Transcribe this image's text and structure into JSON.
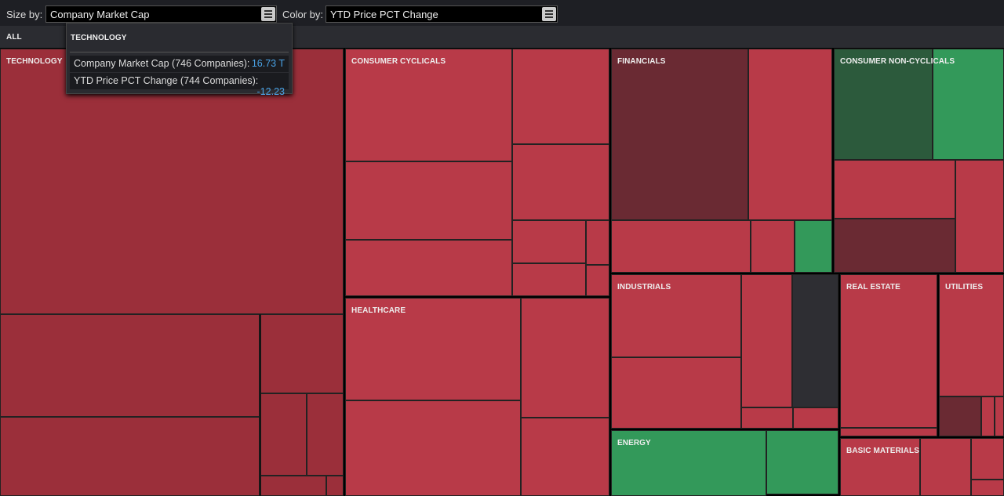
{
  "toolbar": {
    "size_label": "Size by:",
    "size_value": "Company Market Cap",
    "color_label": "Color by:",
    "color_value": "YTD Price PCT Change"
  },
  "breadcrumb": "ALL",
  "sectors": [
    "TECHNOLOGY",
    "CONSUMER CYCLICALS",
    "HEALTHCARE",
    "FINANCIALS",
    "CONSUMER NON-CYCLICALS",
    "INDUSTRIALS",
    "ENERGY",
    "REAL ESTATE",
    "UTILITIES",
    "BASIC MATERIALS"
  ],
  "tooltip": {
    "title": "TECHNOLOGY",
    "rows": [
      {
        "label": "Company Market Cap (746 Companies):",
        "value": "16.73 T"
      },
      {
        "label": "YTD Price PCT Change (744 Companies):",
        "value": "-12.23"
      }
    ]
  }
}
